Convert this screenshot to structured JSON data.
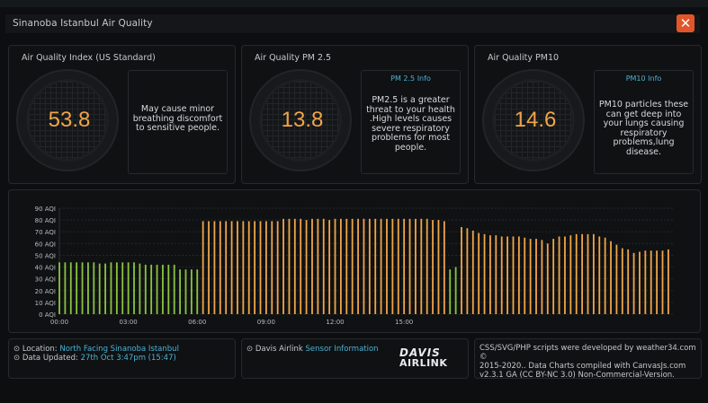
{
  "window": {
    "title": "Sinanoba Istanbul Air Quality",
    "close_label": "✕"
  },
  "gauges": [
    {
      "label": "Air Quality Index (US Standard)",
      "value": "53.8",
      "info_title": "",
      "info_text": "May cause minor breathing discomfort to sensitive people."
    },
    {
      "label": "Air Quality PM 2.5",
      "value": "13.8",
      "info_title": "PM 2.5 Info",
      "info_text": "PM2.5 is a greater threat to your health .High levels causes severe respiratory problems for most people."
    },
    {
      "label": "Air Quality PM10",
      "value": "14.6",
      "info_title": "PM10 Info",
      "info_text": "PM10 particles these can get deep into your lungs causing respiratory problems,lung disease."
    }
  ],
  "colors": {
    "accent": "#f0a548",
    "link": "#4bb4d6",
    "good": "#8bc43f",
    "moderate": "#f0a548",
    "close": "#e2552a"
  },
  "chart_data": {
    "type": "bar",
    "ylim": [
      0,
      90
    ],
    "ytick_labels": [
      "0 AQI",
      "10 AQI",
      "20 AQI",
      "30 AQI",
      "40 AQI",
      "50 AQI",
      "60 AQI",
      "70 AQI",
      "80 AQI",
      "90 AQI"
    ],
    "xtick_labels": [
      "00:00",
      "03:00",
      "06:00",
      "09:00",
      "12:00",
      "15:00"
    ],
    "xtick_positions": [
      0,
      3,
      6,
      9,
      12,
      15
    ],
    "x_start": 0,
    "x_step": 0.25,
    "values": [
      44,
      44,
      44,
      44,
      44,
      44,
      44,
      43,
      43,
      44,
      44,
      44,
      44,
      44,
      43,
      42,
      42,
      42,
      42,
      42,
      42,
      38,
      38,
      38,
      38,
      79,
      79,
      79,
      79,
      79,
      79,
      79,
      79,
      79,
      79,
      79,
      79,
      79,
      79,
      81,
      81,
      81,
      81,
      80,
      81,
      81,
      81,
      80,
      81,
      81,
      81,
      81,
      81,
      81,
      81,
      81,
      81,
      81,
      81,
      81,
      81,
      81,
      81,
      81,
      81,
      80,
      80,
      79,
      38,
      40,
      74,
      73,
      71,
      69,
      68,
      67,
      67,
      66,
      66,
      66,
      66,
      65,
      64,
      64,
      63,
      60,
      64,
      66,
      66,
      67,
      68,
      68,
      68,
      68,
      66,
      65,
      62,
      59,
      56,
      55,
      52,
      53,
      54,
      54,
      54,
      54,
      55
    ],
    "good_threshold": 50
  },
  "footer": {
    "location_label": "Location:",
    "location_value": "North Facing Sinanoba Istanbul",
    "updated_label": "Data Updated:",
    "updated_value": "27th Oct 3:47pm (15:47)",
    "sensor_label": "Davis Airlink",
    "sensor_link": "Sensor Information",
    "logo_top": "DAVIS",
    "logo_bottom": "AIRLINK",
    "credits_line1": "CSS/SVG/PHP scripts were developed by weather34.com ©",
    "credits_line2": "2015-2020.. Data Charts compiled with CanvasJs.com",
    "credits_line3": "v2.3.1 GA (CC BY-NC 3.0) Non-Commercial-Version."
  }
}
